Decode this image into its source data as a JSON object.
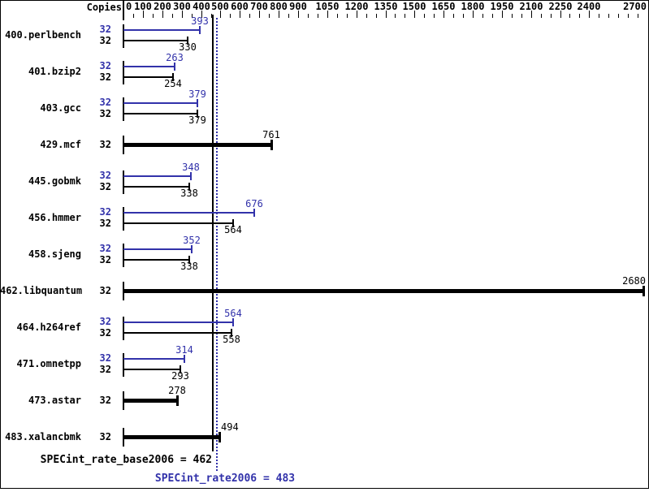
{
  "chart_data": {
    "type": "bar",
    "orientation": "horizontal",
    "title": "",
    "copies_column_header": "Copies",
    "categories": [
      "400.perlbench",
      "401.bzip2",
      "403.gcc",
      "429.mcf",
      "445.gobmk",
      "456.hmmer",
      "458.sjeng",
      "462.libquantum",
      "464.h264ref",
      "471.omnetpp",
      "473.astar",
      "483.xalancbmk"
    ],
    "copies": [
      32,
      32,
      32,
      32,
      32,
      32,
      32,
      32,
      32,
      32,
      32,
      32
    ],
    "series": [
      {
        "name": "SPECint_rate2006 (peak)",
        "color": "#3232aa",
        "values": [
          393,
          263,
          379,
          null,
          348,
          676,
          352,
          null,
          564,
          314,
          null,
          null
        ]
      },
      {
        "name": "SPECint_rate_base2006 (base)",
        "color": "#000000",
        "values": [
          330,
          254,
          379,
          761,
          338,
          564,
          338,
          2680,
          558,
          293,
          278,
          494
        ]
      }
    ],
    "x_axis": {
      "position": "top",
      "range": [
        0,
        2700
      ],
      "tick_labels": [
        0,
        100,
        200,
        300,
        400,
        500,
        600,
        700,
        800,
        900,
        1050,
        1200,
        1350,
        1500,
        1650,
        1800,
        1950,
        2100,
        2250,
        2400,
        2700
      ],
      "minor_tick_step": 50
    },
    "reference_lines": [
      {
        "name": "SPECint_rate_base2006",
        "value": 462,
        "style": "solid",
        "color": "#000000"
      },
      {
        "name": "SPECint_rate2006",
        "value": 483,
        "style": "dotted",
        "color": "#3232aa"
      }
    ],
    "footer": {
      "base_label": "SPECint_rate_base2006 = 462",
      "peak_label": "SPECint_rate2006 = 483"
    },
    "legend_position": "none",
    "grid": false
  },
  "colors": {
    "peak": "#3232aa",
    "base": "#000000",
    "background": "#ffffff",
    "border": "#000000"
  }
}
